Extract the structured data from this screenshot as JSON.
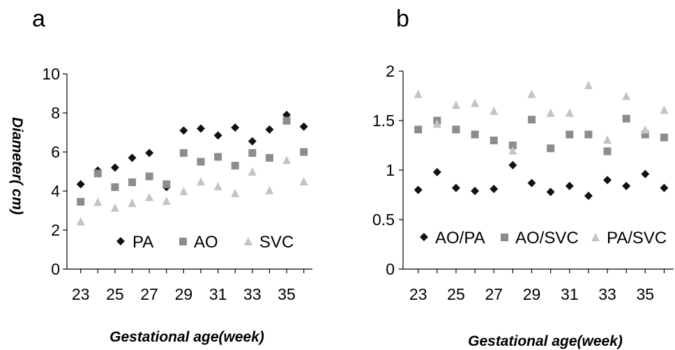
{
  "chart_data": [
    {
      "panel": "a",
      "type": "scatter",
      "xlabel": "Gestational age(week)",
      "ylabel": "Diameter( cm)",
      "xlim": [
        22.2,
        36.5
      ],
      "ylim": [
        0,
        10
      ],
      "x_ticks": [
        23,
        25,
        27,
        29,
        31,
        33,
        35
      ],
      "y_ticks": [
        0,
        2,
        4,
        6,
        8,
        10
      ],
      "legend_position": "bottom-inside",
      "grid": false,
      "x": [
        23,
        24,
        25,
        26,
        27,
        28,
        29,
        30,
        31,
        32,
        33,
        34,
        35,
        36
      ],
      "series": [
        {
          "name": "PA",
          "marker": "diamond",
          "color": "#111111",
          "values": [
            4.35,
            5.05,
            5.2,
            5.7,
            5.95,
            4.2,
            7.1,
            7.2,
            6.85,
            7.25,
            6.55,
            7.15,
            7.9,
            7.3
          ]
        },
        {
          "name": "AO",
          "marker": "square",
          "color": "#8c8c8c",
          "values": [
            3.45,
            4.9,
            4.2,
            4.45,
            4.75,
            4.35,
            5.95,
            5.5,
            5.75,
            5.3,
            5.95,
            5.7,
            7.6,
            6.0
          ]
        },
        {
          "name": "SVC",
          "marker": "triangle",
          "color": "#c4c4c4",
          "values": [
            2.45,
            3.45,
            3.15,
            3.4,
            3.7,
            3.5,
            4.0,
            4.5,
            4.25,
            3.9,
            5.0,
            4.05,
            5.6,
            4.5
          ]
        }
      ]
    },
    {
      "panel": "b",
      "type": "scatter",
      "xlabel": "Gestational age(week)",
      "ylabel": "",
      "xlim": [
        22.2,
        36.5
      ],
      "ylim": [
        0,
        2
      ],
      "x_ticks": [
        23,
        25,
        27,
        29,
        31,
        33,
        35
      ],
      "y_ticks": [
        0,
        0.5,
        1,
        1.5,
        2
      ],
      "legend_position": "bottom-inside",
      "grid": false,
      "x": [
        23,
        24,
        25,
        26,
        27,
        28,
        29,
        30,
        31,
        32,
        33,
        34,
        35,
        36
      ],
      "series": [
        {
          "name": "AO/PA",
          "marker": "diamond",
          "color": "#111111",
          "values": [
            0.8,
            0.98,
            0.82,
            0.79,
            0.81,
            1.05,
            0.87,
            0.78,
            0.84,
            0.74,
            0.9,
            0.84,
            0.96,
            0.82
          ]
        },
        {
          "name": "AO/SVC",
          "marker": "square",
          "color": "#8c8c8c",
          "values": [
            1.41,
            1.5,
            1.41,
            1.36,
            1.3,
            1.25,
            1.51,
            1.22,
            1.36,
            1.36,
            1.19,
            1.52,
            1.36,
            1.33
          ]
        },
        {
          "name": "PA/SVC",
          "marker": "triangle",
          "color": "#c4c4c4",
          "values": [
            1.77,
            1.47,
            1.66,
            1.68,
            1.6,
            1.2,
            1.77,
            1.58,
            1.58,
            1.86,
            1.31,
            1.75,
            1.41,
            1.61
          ]
        }
      ]
    }
  ]
}
